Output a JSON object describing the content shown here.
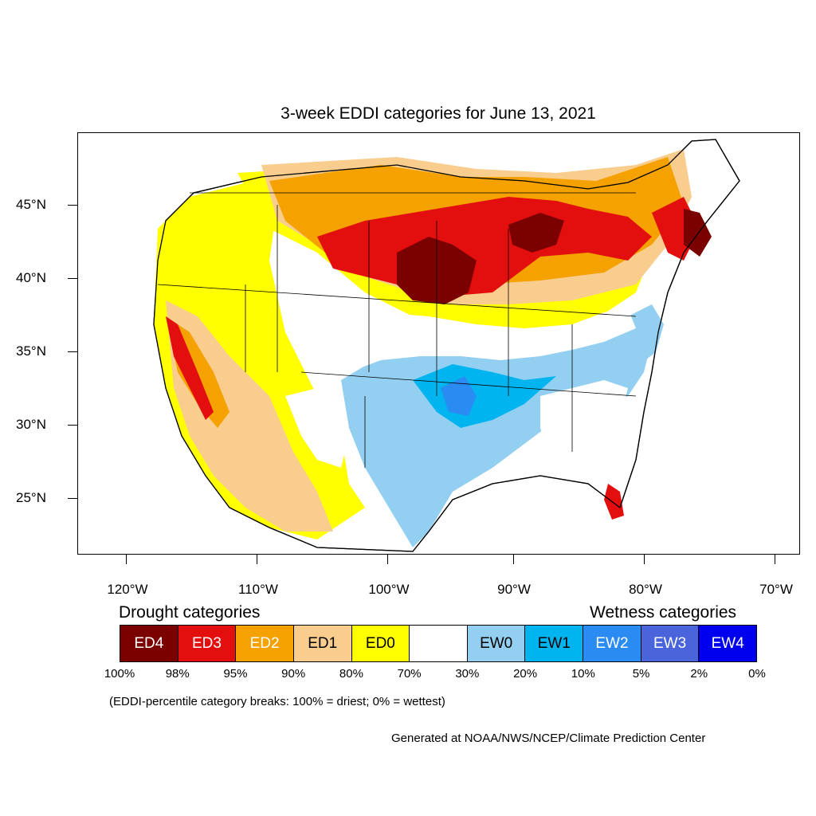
{
  "title": "3-week EDDI categories for June 13, 2021",
  "axes": {
    "latitude_labels": [
      "45°N",
      "40°N",
      "35°N",
      "30°N",
      "25°N"
    ],
    "longitude_labels": [
      "120°W",
      "110°W",
      "100°W",
      "90°W",
      "80°W",
      "70°W"
    ]
  },
  "legend": {
    "drought_heading": "Drought categories",
    "wetness_heading": "Wetness categories",
    "categories": [
      {
        "label": "ED4",
        "color": "#7b0000",
        "text_color": "#ffffff"
      },
      {
        "label": "ED3",
        "color": "#e30e0e",
        "text_color": "#ffffff"
      },
      {
        "label": "ED2",
        "color": "#f5a100",
        "text_color": "#ffffff"
      },
      {
        "label": "ED1",
        "color": "#f9cd8d",
        "text_color": "#000000"
      },
      {
        "label": "ED0",
        "color": "#ffff00",
        "text_color": "#000000"
      },
      {
        "label": "",
        "color": "#ffffff",
        "text_color": "#000000"
      },
      {
        "label": "EW0",
        "color": "#92cff0",
        "text_color": "#000000"
      },
      {
        "label": "EW1",
        "color": "#00b4f0",
        "text_color": "#000000"
      },
      {
        "label": "EW2",
        "color": "#2a8cf2",
        "text_color": "#ffffff"
      },
      {
        "label": "EW3",
        "color": "#4a64db",
        "text_color": "#ffffff"
      },
      {
        "label": "EW4",
        "color": "#0000ee",
        "text_color": "#ffffff"
      }
    ],
    "percentiles": [
      "100%",
      "98%",
      "95%",
      "90%",
      "80%",
      "70%",
      "30%",
      "20%",
      "10%",
      "5%",
      "2%",
      "0%"
    ]
  },
  "note": "(EDDI-percentile category breaks: 100% = driest; 0% = wettest)",
  "credit": "Generated at NOAA/NWS/NCEP/Climate Prediction Center"
}
